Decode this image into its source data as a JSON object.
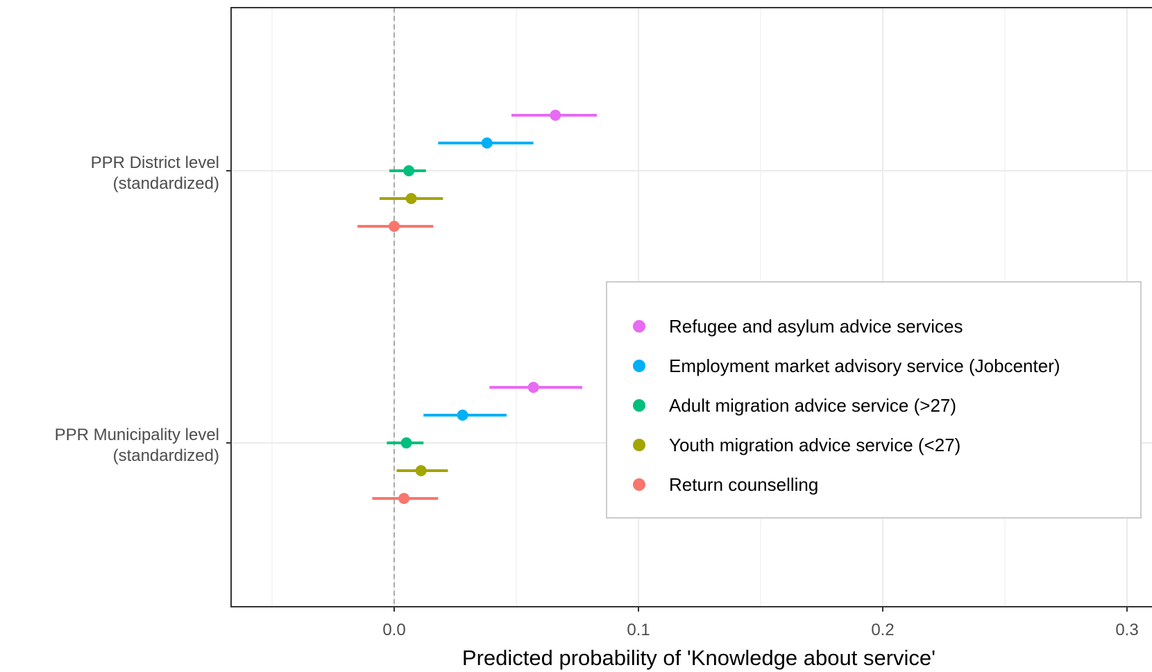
{
  "chart_data": {
    "type": "scatter",
    "subtype": "coefficient-plot-with-error-bars",
    "title": "",
    "xlabel": "Predicted probability of 'Knowledge about service'",
    "ylabel": "",
    "xlim": [
      -0.067,
      0.3
    ],
    "xticks": [
      0.0,
      0.1,
      0.2,
      0.3
    ],
    "xtick_labels": [
      "0.0",
      "0.1",
      "0.2",
      "0.3"
    ],
    "grid": true,
    "reference_line": 0,
    "categories": [
      {
        "key": "district",
        "lines": [
          "PPR District level",
          "(standardized)"
        ]
      },
      {
        "key": "municipality",
        "lines": [
          "PPR Municipality level",
          "(standardized)"
        ]
      }
    ],
    "series": [
      {
        "name": "Refugee and asylum advice services",
        "color": "#E76BF3",
        "points": [
          {
            "category": "district",
            "estimate": 0.066,
            "low": 0.048,
            "high": 0.083
          },
          {
            "category": "municipality",
            "estimate": 0.057,
            "low": 0.039,
            "high": 0.077
          }
        ]
      },
      {
        "name": "Employment market advisory service (Jobcenter)",
        "color": "#00B0F6",
        "points": [
          {
            "category": "district",
            "estimate": 0.038,
            "low": 0.018,
            "high": 0.057
          },
          {
            "category": "municipality",
            "estimate": 0.028,
            "low": 0.012,
            "high": 0.046
          }
        ]
      },
      {
        "name": "Adult migration advice service (>27)",
        "color": "#00BF7D",
        "points": [
          {
            "category": "district",
            "estimate": 0.006,
            "low": -0.002,
            "high": 0.013
          },
          {
            "category": "municipality",
            "estimate": 0.005,
            "low": -0.003,
            "high": 0.012
          }
        ]
      },
      {
        "name": "Youth migration advice service (<27)",
        "color": "#A3A500",
        "points": [
          {
            "category": "district",
            "estimate": 0.007,
            "low": -0.006,
            "high": 0.02
          },
          {
            "category": "municipality",
            "estimate": 0.011,
            "low": 0.001,
            "high": 0.022
          }
        ]
      },
      {
        "name": "Return counselling",
        "color": "#F8766D",
        "points": [
          {
            "category": "district",
            "estimate": 0.0,
            "low": -0.015,
            "high": 0.016
          },
          {
            "category": "municipality",
            "estimate": 0.004,
            "low": -0.009,
            "high": 0.018
          }
        ]
      }
    ],
    "legend": {
      "position": "bottom-right",
      "order": [
        0,
        1,
        2,
        3,
        4
      ]
    }
  }
}
